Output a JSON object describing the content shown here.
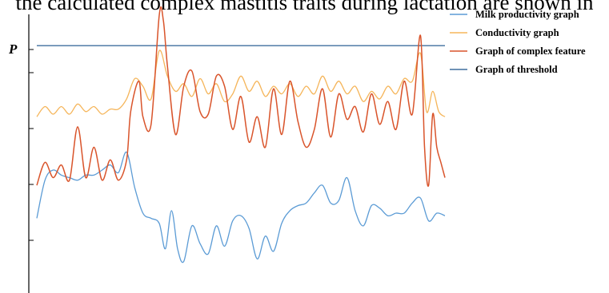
{
  "caption": "the calculated complex mastitis traits during lactation are shown in",
  "colors": {
    "milk": "#5b9bd5",
    "conductivity": "#f5b55a",
    "complex": "#d9542b",
    "threshold": "#3f6f9e",
    "axis": "#000000"
  },
  "chart_data": {
    "type": "line",
    "title": "",
    "xlabel": "",
    "ylabel": "P",
    "ylim": [
      0,
      100
    ],
    "xlim": [
      0,
      100
    ],
    "grid": false,
    "legend_position": "top-right",
    "series": [
      {
        "name": "Milk productivity graph",
        "key": "milk",
        "points": [
          [
            0,
            20
          ],
          [
            2,
            35
          ],
          [
            4,
            39
          ],
          [
            6,
            37
          ],
          [
            8,
            36
          ],
          [
            10,
            35
          ],
          [
            12,
            37
          ],
          [
            14,
            37
          ],
          [
            16,
            39
          ],
          [
            18,
            41
          ],
          [
            20,
            38
          ],
          [
            22,
            46
          ],
          [
            24,
            32
          ],
          [
            26,
            22
          ],
          [
            28,
            20
          ],
          [
            30,
            18
          ],
          [
            31.5,
            8
          ],
          [
            33,
            23
          ],
          [
            34.5,
            8
          ],
          [
            36,
            3
          ],
          [
            38,
            17
          ],
          [
            40,
            10
          ],
          [
            42,
            6
          ],
          [
            44,
            17
          ],
          [
            46,
            9
          ],
          [
            48,
            19
          ],
          [
            50,
            21
          ],
          [
            52,
            16
          ],
          [
            54,
            4
          ],
          [
            56,
            13
          ],
          [
            58,
            7
          ],
          [
            60,
            18
          ],
          [
            62,
            23
          ],
          [
            64,
            25
          ],
          [
            66,
            26
          ],
          [
            68,
            30
          ],
          [
            70,
            33
          ],
          [
            72,
            26
          ],
          [
            74,
            27
          ],
          [
            76,
            36
          ],
          [
            78,
            23
          ],
          [
            80,
            17
          ],
          [
            82,
            25
          ],
          [
            84,
            24
          ],
          [
            86,
            21
          ],
          [
            88,
            22
          ],
          [
            90,
            22
          ],
          [
            92,
            26
          ],
          [
            94,
            28
          ],
          [
            96,
            19
          ],
          [
            98,
            22
          ],
          [
            100,
            21
          ]
        ]
      },
      {
        "name": "Conductivity graph",
        "key": "conductivity",
        "points": [
          [
            0,
            60
          ],
          [
            2,
            64
          ],
          [
            4,
            61
          ],
          [
            6,
            64
          ],
          [
            8,
            61
          ],
          [
            10,
            65
          ],
          [
            12,
            62
          ],
          [
            14,
            64
          ],
          [
            16,
            61
          ],
          [
            18,
            63
          ],
          [
            20,
            63
          ],
          [
            22,
            67
          ],
          [
            24,
            75
          ],
          [
            26,
            72
          ],
          [
            28,
            67
          ],
          [
            30,
            86
          ],
          [
            32,
            76
          ],
          [
            34,
            70
          ],
          [
            36,
            73
          ],
          [
            38,
            68
          ],
          [
            40,
            75
          ],
          [
            42,
            69
          ],
          [
            44,
            73
          ],
          [
            46,
            66
          ],
          [
            48,
            69
          ],
          [
            50,
            76
          ],
          [
            52,
            70
          ],
          [
            54,
            74
          ],
          [
            56,
            68
          ],
          [
            58,
            72
          ],
          [
            60,
            69
          ],
          [
            62,
            73
          ],
          [
            64,
            68
          ],
          [
            66,
            72
          ],
          [
            68,
            69
          ],
          [
            70,
            76
          ],
          [
            72,
            70
          ],
          [
            74,
            74
          ],
          [
            76,
            69
          ],
          [
            78,
            72
          ],
          [
            80,
            66
          ],
          [
            82,
            70
          ],
          [
            84,
            67
          ],
          [
            86,
            72
          ],
          [
            88,
            69
          ],
          [
            90,
            75
          ],
          [
            92,
            74
          ],
          [
            94,
            85
          ],
          [
            95.5,
            62
          ],
          [
            97,
            70
          ],
          [
            98.5,
            62
          ],
          [
            100,
            60
          ]
        ]
      },
      {
        "name": "Graph of complex feature",
        "key": "complex",
        "points": [
          [
            0,
            33
          ],
          [
            2,
            42
          ],
          [
            4,
            36
          ],
          [
            6,
            41
          ],
          [
            8,
            35
          ],
          [
            10,
            56
          ],
          [
            12,
            36
          ],
          [
            14,
            48
          ],
          [
            16,
            35
          ],
          [
            18,
            43
          ],
          [
            20,
            35
          ],
          [
            22,
            43
          ],
          [
            23,
            62
          ],
          [
            25,
            74
          ],
          [
            26,
            60
          ],
          [
            28,
            57
          ],
          [
            30,
            100
          ],
          [
            31,
            98
          ],
          [
            32,
            80
          ],
          [
            34,
            53
          ],
          [
            36,
            72
          ],
          [
            38,
            78
          ],
          [
            40,
            62
          ],
          [
            42,
            61
          ],
          [
            44,
            76
          ],
          [
            46,
            72
          ],
          [
            48,
            55
          ],
          [
            50,
            68
          ],
          [
            52,
            50
          ],
          [
            54,
            60
          ],
          [
            56,
            48
          ],
          [
            58,
            71
          ],
          [
            60,
            53
          ],
          [
            62,
            74
          ],
          [
            64,
            58
          ],
          [
            66,
            48
          ],
          [
            68,
            55
          ],
          [
            70,
            71
          ],
          [
            72,
            52
          ],
          [
            74,
            69
          ],
          [
            76,
            59
          ],
          [
            78,
            64
          ],
          [
            80,
            54
          ],
          [
            82,
            69
          ],
          [
            84,
            57
          ],
          [
            86,
            66
          ],
          [
            88,
            55
          ],
          [
            90,
            74
          ],
          [
            92,
            61
          ],
          [
            94,
            92
          ],
          [
            95,
            48
          ],
          [
            96,
            33
          ],
          [
            97,
            61
          ],
          [
            98,
            48
          ],
          [
            99,
            42
          ],
          [
            100,
            36
          ]
        ]
      },
      {
        "name": "Graph of threshold",
        "key": "threshold",
        "points": [
          [
            0,
            88
          ],
          [
            100,
            88
          ]
        ]
      }
    ]
  }
}
